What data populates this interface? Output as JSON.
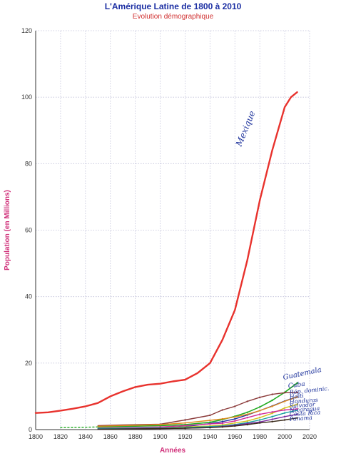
{
  "chart_data": {
    "type": "line",
    "title": "L'Amérique Latine de 1800 à 2010",
    "subtitle": "Evolution démographique",
    "xlabel": "Années",
    "ylabel": "Population    (en Millions)",
    "xlim": [
      1800,
      2020
    ],
    "ylim": [
      0,
      120
    ],
    "xticks": [
      "1800",
      "1820",
      "1840",
      "1860",
      "1880",
      "1900",
      "1920",
      "1940",
      "1960",
      "1980",
      "2000",
      "2020"
    ],
    "yticks": [
      "0",
      "20",
      "40",
      "60",
      "80",
      "100",
      "120"
    ],
    "grid": true,
    "colors": {
      "title": "#1c2fa3",
      "subtitle": "#d03030",
      "axis_label": "#d0307a",
      "grid": "#bfbfd8",
      "handwriting": "#1a2f9a"
    },
    "series": [
      {
        "name": "Mexique",
        "color": "#e8322d",
        "width": 2.4,
        "x": [
          1800,
          1810,
          1820,
          1830,
          1840,
          1850,
          1860,
          1870,
          1880,
          1890,
          1900,
          1910,
          1920,
          1930,
          1940,
          1950,
          1960,
          1970,
          1980,
          1990,
          2000,
          2005,
          2010
        ],
        "y": [
          5,
          5.2,
          5.7,
          6.3,
          7,
          8,
          10,
          11.5,
          12.8,
          13.5,
          13.8,
          14.5,
          15,
          17,
          20,
          27,
          36,
          51,
          69,
          84,
          97,
          100,
          101.5
        ]
      },
      {
        "name": "Guatemala",
        "color": "#22aa22",
        "width": 1.6,
        "x": [
          1850,
          1900,
          1920,
          1940,
          1950,
          1960,
          1970,
          1980,
          1990,
          2000,
          2010
        ],
        "y": [
          0.8,
          1.2,
          1.5,
          2.2,
          3,
          4,
          5.2,
          6.8,
          8.8,
          11.2,
          14
        ]
      },
      {
        "name": "Cuba",
        "color": "#8b3a3a",
        "width": 1.4,
        "x": [
          1850,
          1870,
          1900,
          1920,
          1940,
          1950,
          1960,
          1970,
          1980,
          1990,
          2000,
          2010
        ],
        "y": [
          1.2,
          1.4,
          1.6,
          2.9,
          4.3,
          5.9,
          7,
          8.5,
          9.7,
          10.6,
          11.1,
          11.2
        ]
      },
      {
        "name": "Rép. dominicaine",
        "color": "#2030a0",
        "width": 1.4,
        "x": [
          1850,
          1900,
          1920,
          1940,
          1950,
          1960,
          1970,
          1980,
          1990,
          2000,
          2010
        ],
        "y": [
          0.15,
          0.5,
          0.9,
          1.8,
          2.4,
          3.2,
          4.4,
          5.7,
          7.1,
          8.6,
          9.9
        ]
      },
      {
        "name": "Haïti",
        "color": "#e08a1e",
        "width": 1.4,
        "x": [
          1850,
          1900,
          1920,
          1940,
          1950,
          1960,
          1970,
          1980,
          1990,
          2000,
          2010
        ],
        "y": [
          1,
          1.5,
          2,
          2.8,
          3.2,
          3.8,
          4.6,
          5.7,
          7,
          8.5,
          9.8
        ]
      },
      {
        "name": "Honduras",
        "color": "#d2c21e",
        "width": 1.4,
        "x": [
          1850,
          1900,
          1920,
          1940,
          1950,
          1960,
          1970,
          1980,
          1990,
          2000,
          2010
        ],
        "y": [
          0.3,
          0.5,
          0.8,
          1.1,
          1.4,
          2,
          2.6,
          3.6,
          4.9,
          6.5,
          7.6
        ]
      },
      {
        "name": "Salvador",
        "color": "#d22a9a",
        "width": 1.4,
        "x": [
          1850,
          1900,
          1920,
          1940,
          1950,
          1960,
          1970,
          1980,
          1990,
          2000,
          2010
        ],
        "y": [
          0.4,
          0.8,
          1.2,
          1.7,
          1.9,
          2.6,
          3.6,
          4.6,
          5.3,
          5.9,
          6.2
        ]
      },
      {
        "name": "Nicaragua",
        "color": "#18a0a0",
        "width": 1.4,
        "x": [
          1850,
          1900,
          1920,
          1940,
          1950,
          1960,
          1970,
          1980,
          1990,
          2000,
          2010
        ],
        "y": [
          0.3,
          0.5,
          0.6,
          0.9,
          1.1,
          1.5,
          2.1,
          2.9,
          3.9,
          5,
          5.8
        ]
      },
      {
        "name": "Costa Rica",
        "color": "#7a2aa0",
        "width": 1.4,
        "x": [
          1850,
          1900,
          1920,
          1940,
          1950,
          1960,
          1970,
          1980,
          1990,
          2000,
          2010
        ],
        "y": [
          0.1,
          0.3,
          0.4,
          0.6,
          0.9,
          1.3,
          1.8,
          2.3,
          3.1,
          3.9,
          4.6
        ]
      },
      {
        "name": "Panama",
        "color": "#3a2a1a",
        "width": 1.4,
        "x": [
          1850,
          1900,
          1920,
          1940,
          1950,
          1960,
          1970,
          1980,
          1990,
          2000,
          2010
        ],
        "y": [
          0.1,
          0.3,
          0.4,
          0.6,
          0.8,
          1.1,
          1.5,
          2,
          2.4,
          2.9,
          3.5
        ]
      },
      {
        "name": "dotted-early",
        "color": "#22aa22",
        "width": 1.4,
        "dash": "2,3",
        "x": [
          1820,
          1830,
          1840,
          1850
        ],
        "y": [
          0.6,
          0.65,
          0.7,
          0.8
        ]
      }
    ],
    "annotations": [
      {
        "text": "Mexique",
        "x": 1965,
        "y": 85,
        "rotate": -68,
        "size": 12
      },
      {
        "text": "Guatemala",
        "x": 1999,
        "y": 15,
        "rotate": -12,
        "size": 10
      },
      {
        "text": "Cuba",
        "x": 2003,
        "y": 12.5,
        "rotate": -8,
        "size": 9
      },
      {
        "text": "Rép. dominic.",
        "x": 2004,
        "y": 10.6,
        "rotate": -6,
        "size": 8
      },
      {
        "text": "Haïti",
        "x": 2004,
        "y": 9.2,
        "rotate": -6,
        "size": 8
      },
      {
        "text": "Honduras",
        "x": 2004,
        "y": 7.8,
        "rotate": -4,
        "size": 8
      },
      {
        "text": "Salvador",
        "x": 2004,
        "y": 6.5,
        "rotate": -4,
        "size": 8
      },
      {
        "text": "Nicaragua",
        "x": 2004,
        "y": 5.2,
        "rotate": -4,
        "size": 8
      },
      {
        "text": "Costa Rica",
        "x": 2004,
        "y": 4,
        "rotate": -4,
        "size": 8
      },
      {
        "text": "Panama",
        "x": 2004,
        "y": 2.6,
        "rotate": -4,
        "size": 8
      }
    ]
  }
}
